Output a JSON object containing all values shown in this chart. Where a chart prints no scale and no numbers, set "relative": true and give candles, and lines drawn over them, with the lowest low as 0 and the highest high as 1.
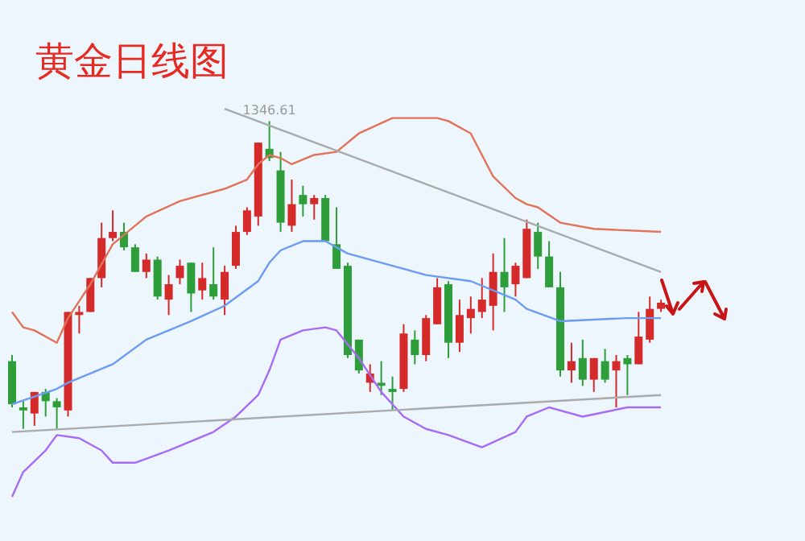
{
  "chart_data": {
    "type": "candlestick",
    "title": "黄金日线图",
    "relative": true,
    "tick_labels": false,
    "categories": [
      null,
      null,
      null,
      null,
      null,
      null,
      null,
      null,
      null,
      null,
      null,
      null,
      null,
      null,
      null,
      null,
      null,
      null,
      null,
      null,
      null,
      null,
      null,
      null,
      null,
      null,
      null,
      null,
      null,
      null,
      null,
      null,
      null,
      null,
      null,
      null,
      null,
      null,
      null,
      null,
      null,
      null,
      null,
      null,
      null,
      null,
      null,
      null,
      null,
      null,
      null,
      null,
      null,
      null,
      null,
      null,
      null,
      null,
      null
    ],
    "ohlc": [
      [
        0.22,
        0.24,
        0.07,
        0.08
      ],
      [
        0.07,
        0.09,
        0.0,
        0.06
      ],
      [
        0.05,
        0.12,
        0.01,
        0.12
      ],
      [
        0.12,
        0.13,
        0.04,
        0.09
      ],
      [
        0.09,
        0.1,
        0.0,
        0.07
      ],
      [
        0.06,
        0.38,
        0.04,
        0.38
      ],
      [
        0.37,
        0.4,
        0.31,
        0.38
      ],
      [
        0.38,
        0.49,
        0.38,
        0.49
      ],
      [
        0.49,
        0.67,
        0.46,
        0.62
      ],
      [
        0.62,
        0.71,
        0.61,
        0.64
      ],
      [
        0.64,
        0.67,
        0.58,
        0.59
      ],
      [
        0.59,
        0.6,
        0.51,
        0.51
      ],
      [
        0.51,
        0.57,
        0.49,
        0.55
      ],
      [
        0.55,
        0.56,
        0.42,
        0.43
      ],
      [
        0.42,
        0.5,
        0.37,
        0.47
      ],
      [
        0.49,
        0.55,
        0.47,
        0.53
      ],
      [
        0.54,
        0.54,
        0.38,
        0.44
      ],
      [
        0.45,
        0.54,
        0.42,
        0.49
      ],
      [
        0.47,
        0.59,
        0.42,
        0.43
      ],
      [
        0.42,
        0.53,
        0.37,
        0.51
      ],
      [
        0.53,
        0.66,
        0.52,
        0.64
      ],
      [
        0.64,
        0.72,
        0.63,
        0.71
      ],
      [
        0.69,
        0.93,
        0.66,
        0.93
      ],
      [
        0.91,
        1.0,
        0.87,
        0.88
      ],
      [
        0.84,
        0.9,
        0.64,
        0.67
      ],
      [
        0.66,
        0.81,
        0.64,
        0.73
      ],
      [
        0.76,
        0.79,
        0.69,
        0.73
      ],
      [
        0.73,
        0.76,
        0.68,
        0.75
      ],
      [
        0.75,
        0.76,
        0.61,
        0.61
      ],
      [
        0.6,
        0.72,
        0.52,
        0.52
      ],
      [
        0.53,
        0.54,
        0.23,
        0.24
      ],
      [
        0.29,
        0.29,
        0.18,
        0.19
      ],
      [
        0.15,
        0.21,
        0.12,
        0.18
      ],
      [
        0.15,
        0.22,
        0.11,
        0.14
      ],
      [
        0.13,
        0.17,
        0.06,
        0.12
      ],
      [
        0.13,
        0.34,
        0.12,
        0.31
      ],
      [
        0.29,
        0.32,
        0.21,
        0.24
      ],
      [
        0.24,
        0.37,
        0.22,
        0.36
      ],
      [
        0.34,
        0.49,
        0.34,
        0.46
      ],
      [
        0.47,
        0.48,
        0.23,
        0.28
      ],
      [
        0.28,
        0.42,
        0.25,
        0.37
      ],
      [
        0.36,
        0.43,
        0.31,
        0.39
      ],
      [
        0.38,
        0.49,
        0.36,
        0.42
      ],
      [
        0.4,
        0.57,
        0.32,
        0.51
      ],
      [
        0.51,
        0.62,
        0.38,
        0.46
      ],
      [
        0.47,
        0.54,
        0.43,
        0.53
      ],
      [
        0.49,
        0.68,
        0.49,
        0.65
      ],
      [
        0.64,
        0.67,
        0.52,
        0.56
      ],
      [
        0.56,
        0.61,
        0.46,
        0.46
      ],
      [
        0.46,
        0.51,
        0.17,
        0.19
      ],
      [
        0.19,
        0.28,
        0.15,
        0.22
      ],
      [
        0.23,
        0.29,
        0.14,
        0.16
      ],
      [
        0.16,
        0.23,
        0.12,
        0.23
      ],
      [
        0.22,
        0.26,
        0.15,
        0.16
      ],
      [
        0.19,
        0.24,
        0.07,
        0.22
      ],
      [
        0.23,
        0.24,
        0.11,
        0.21
      ],
      [
        0.21,
        0.38,
        0.21,
        0.3
      ],
      [
        0.29,
        0.43,
        0.28,
        0.39
      ],
      [
        0.39,
        0.42,
        0.38,
        0.41
      ]
    ],
    "colors": [
      "#2e9e3a",
      "#2e9e3a",
      "#d42a2a",
      "#2e9e3a",
      "#2e9e3a",
      "#d42a2a",
      "#d42a2a",
      "#d42a2a",
      "#d42a2a",
      "#d42a2a",
      "#2e9e3a",
      "#2e9e3a",
      "#d42a2a",
      "#2e9e3a",
      "#d42a2a",
      "#d42a2a",
      "#2e9e3a",
      "#d42a2a",
      "#2e9e3a",
      "#d42a2a",
      "#d42a2a",
      "#d42a2a",
      "#d42a2a",
      "#2e9e3a",
      "#2e9e3a",
      "#d42a2a",
      "#2e9e3a",
      "#d42a2a",
      "#2e9e3a",
      "#2e9e3a",
      "#2e9e3a",
      "#2e9e3a",
      "#d42a2a",
      "#2e9e3a",
      "#2e9e3a",
      "#d42a2a",
      "#2e9e3a",
      "#d42a2a",
      "#d42a2a",
      "#2e9e3a",
      "#d42a2a",
      "#d42a2a",
      "#d42a2a",
      "#d42a2a",
      "#2e9e3a",
      "#d42a2a",
      "#d42a2a",
      "#2e9e3a",
      "#2e9e3a",
      "#2e9e3a",
      "#d42a2a",
      "#2e9e3a",
      "#d42a2a",
      "#2e9e3a",
      "#d42a2a",
      "#2e9e3a",
      "#d42a2a",
      "#d42a2a",
      "#d42a2a"
    ],
    "series": [
      {
        "type": "line",
        "color": "#e0735a",
        "values": [
          0.38,
          0.33,
          0.32,
          null,
          0.28,
          0.36,
          null,
          0.47,
          null,
          0.6,
          null,
          null,
          0.69,
          null,
          null,
          0.74,
          null,
          null,
          null,
          0.78,
          null,
          0.81,
          0.86,
          0.89,
          0.88,
          0.86,
          null,
          0.89,
          null,
          0.9,
          null,
          0.96,
          null,
          null,
          1.01,
          null,
          null,
          null,
          1.01,
          1.0,
          null,
          0.96,
          null,
          0.82,
          null,
          0.75,
          0.73,
          0.72,
          null,
          0.67,
          null,
          null,
          0.65,
          null,
          null,
          null,
          null,
          null,
          0.64
        ]
      },
      {
        "type": "line",
        "color": "#6b9cf2",
        "values": [
          0.08,
          null,
          null,
          null,
          0.13,
          0.15,
          null,
          null,
          null,
          0.21,
          null,
          null,
          0.29,
          null,
          null,
          null,
          0.35,
          null,
          null,
          0.4,
          null,
          null,
          0.48,
          0.54,
          0.58,
          null,
          0.61,
          null,
          0.61,
          null,
          0.57,
          null,
          null,
          null,
          0.53,
          null,
          null,
          0.5,
          null,
          null,
          null,
          0.48,
          null,
          null,
          null,
          0.42,
          0.39,
          null,
          null,
          0.35,
          null,
          null,
          null,
          null,
          null,
          0.36,
          null,
          null,
          0.36
        ]
      },
      {
        "type": "line",
        "color": "#a66cf5",
        "values": [
          -0.22,
          -0.14,
          null,
          -0.07,
          -0.02,
          null,
          -0.03,
          null,
          -0.07,
          -0.11,
          null,
          -0.11,
          null,
          null,
          -0.07,
          null,
          null,
          null,
          -0.01,
          null,
          0.04,
          null,
          0.11,
          0.19,
          0.29,
          null,
          0.32,
          null,
          0.33,
          0.32,
          null,
          0.23,
          null,
          0.12,
          null,
          0.04,
          null,
          0.0,
          null,
          -0.02,
          null,
          null,
          -0.06,
          null,
          null,
          -0.01,
          0.04,
          null,
          0.07,
          null,
          null,
          0.04,
          null,
          null,
          null,
          0.07,
          null,
          null,
          0.07
        ]
      },
      {
        "type": "line",
        "color": "#aaaaaa",
        "values": [
          null,
          null,
          null,
          null,
          null,
          null,
          null,
          null,
          null,
          null,
          null,
          null,
          null,
          null,
          null,
          null,
          null,
          null,
          null,
          1.04,
          null,
          null,
          null,
          null,
          null,
          null,
          null,
          null,
          null,
          null,
          null,
          null,
          null,
          null,
          null,
          null,
          null,
          null,
          null,
          null,
          null,
          null,
          null,
          null,
          null,
          null,
          null,
          null,
          null,
          null,
          null,
          null,
          null,
          null,
          null,
          null,
          null,
          null,
          0.51
        ]
      },
      {
        "type": "line",
        "color": "#aaaaaa",
        "values": [
          -0.01,
          null,
          null,
          null,
          null,
          null,
          null,
          null,
          null,
          null,
          null,
          null,
          null,
          null,
          null,
          null,
          null,
          null,
          null,
          null,
          null,
          null,
          null,
          null,
          null,
          null,
          null,
          null,
          null,
          null,
          null,
          null,
          null,
          null,
          null,
          null,
          null,
          null,
          null,
          null,
          null,
          null,
          null,
          null,
          null,
          null,
          null,
          null,
          null,
          null,
          null,
          null,
          null,
          null,
          null,
          null,
          null,
          null,
          0.11
        ]
      }
    ],
    "annotations": [
      "1346.61"
    ]
  }
}
